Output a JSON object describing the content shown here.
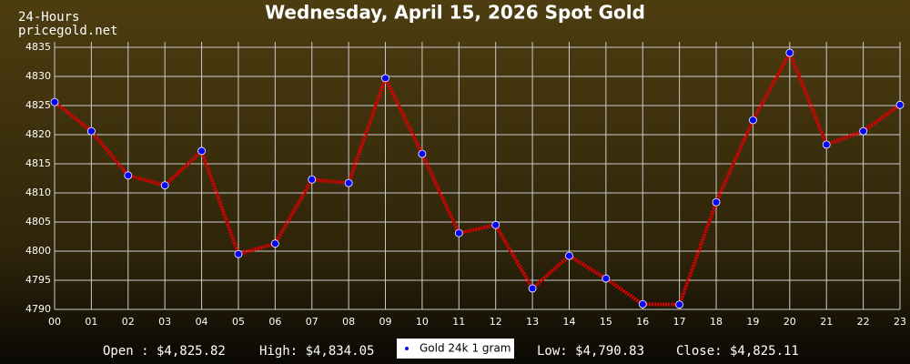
{
  "chart_data": {
    "type": "line",
    "title": "Wednesday, April 15, 2026 Spot Gold",
    "period_label": "24-Hours",
    "source": "pricegold.net",
    "categories": [
      "00",
      "01",
      "02",
      "03",
      "04",
      "05",
      "06",
      "07",
      "08",
      "09",
      "10",
      "11",
      "12",
      "13",
      "14",
      "15",
      "16",
      "17",
      "18",
      "19",
      "20",
      "21",
      "22",
      "23"
    ],
    "series": [
      {
        "name": "Gold 24k 1 gram",
        "color": "#dd0000",
        "marker_color": "#0000ff",
        "values": [
          4825.6,
          4820.6,
          4813.0,
          4811.3,
          4817.2,
          4799.5,
          4801.3,
          4812.3,
          4811.7,
          4829.7,
          4816.7,
          4803.1,
          4804.5,
          4793.6,
          4799.2,
          4795.3,
          4790.9,
          4790.83,
          4808.4,
          4822.5,
          4834.05,
          4818.3,
          4820.6,
          4825.11
        ]
      }
    ],
    "ylim": [
      4790,
      4835
    ],
    "yticks": [
      4790,
      4795,
      4800,
      4805,
      4810,
      4815,
      4820,
      4825,
      4830,
      4835
    ],
    "grid": true,
    "stats": [
      "Open : $4,825.82",
      "High: $4,834.05",
      "Low: $4,790.83",
      "Close: $4,825.11"
    ]
  }
}
